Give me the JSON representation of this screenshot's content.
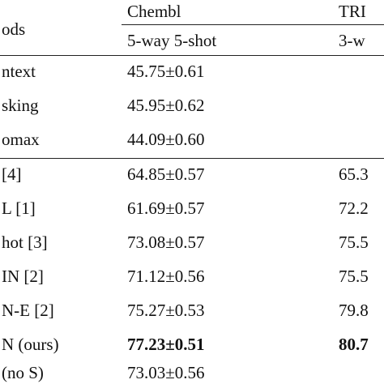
{
  "table": {
    "header": {
      "method": "ods",
      "group1": "Chembl",
      "group2": "TRI",
      "sub1": "5-way 5-shot",
      "sub2": "3-w"
    },
    "rows": [
      [
        "ntext",
        "45.75±0.61",
        ""
      ],
      [
        "sking",
        "45.95±0.62",
        ""
      ],
      [
        "omax",
        "44.09±0.60",
        ""
      ],
      [
        "[4]",
        "64.85±0.57",
        "65.3"
      ],
      [
        "L [1]",
        "61.69±0.57",
        "72.2"
      ],
      [
        "hot [3]",
        "73.08±0.57",
        "75.5"
      ],
      [
        "IN [2]",
        "71.12±0.56",
        "75.5"
      ],
      [
        "N-E [2]",
        "75.27±0.53",
        "79.8"
      ],
      [
        "N (ours)",
        "77.23±0.51",
        "80.7"
      ],
      [
        "(no S)",
        "73.03±0.56",
        ""
      ]
    ]
  }
}
